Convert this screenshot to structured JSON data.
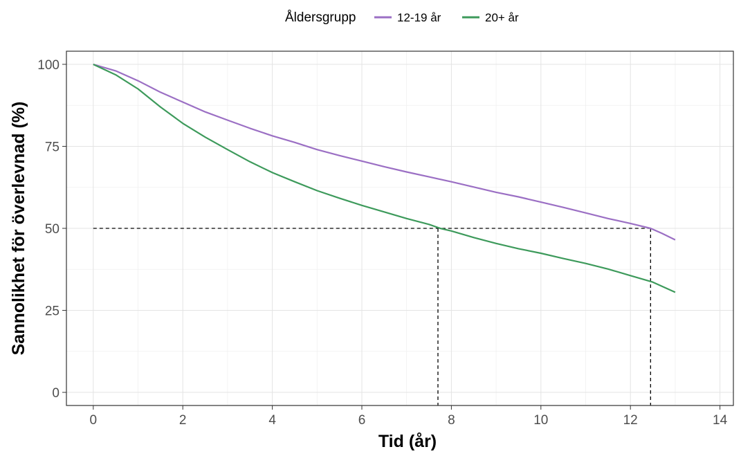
{
  "chart_data": {
    "type": "line",
    "xlabel": "Tid (år)",
    "ylabel": "Sannolikhet för överlevnad (%)",
    "xlim": [
      -0.6,
      14.3
    ],
    "ylim": [
      -4,
      104
    ],
    "x_ticks": [
      0,
      2,
      4,
      6,
      8,
      10,
      12,
      14
    ],
    "y_ticks": [
      0,
      25,
      50,
      75,
      100
    ],
    "grid": true,
    "legend": {
      "title": "Åldersgrupp",
      "position": "top"
    },
    "series": [
      {
        "name": "12-19 år",
        "color": "#9b6fc4",
        "x": [
          0,
          0.5,
          1,
          1.5,
          2,
          2.5,
          3,
          3.5,
          4,
          4.5,
          5,
          5.5,
          6,
          6.5,
          7,
          7.5,
          8,
          8.5,
          9,
          9.5,
          10,
          10.5,
          11,
          11.5,
          12,
          12.45,
          12.7,
          13
        ],
        "y": [
          100,
          98,
          95,
          91.5,
          88.5,
          85.5,
          83,
          80.5,
          78.2,
          76.2,
          74,
          72.2,
          70.5,
          68.8,
          67.2,
          65.7,
          64.2,
          62.6,
          61,
          59.6,
          58,
          56.4,
          54.7,
          53,
          51.5,
          50,
          48.5,
          46.5
        ]
      },
      {
        "name": "20+ år",
        "color": "#3d9a5b",
        "x": [
          0,
          0.5,
          1,
          1.5,
          2,
          2.5,
          3,
          3.5,
          4,
          4.5,
          5,
          5.5,
          6,
          6.5,
          7,
          7.5,
          7.75,
          8,
          8.5,
          9,
          9.5,
          10,
          10.5,
          11,
          11.5,
          12,
          12.5,
          13
        ],
        "y": [
          100,
          96.8,
          92.5,
          87,
          82,
          77.8,
          74,
          70.3,
          67,
          64.2,
          61.5,
          59.2,
          57,
          55,
          53,
          51.2,
          50,
          49.2,
          47.2,
          45.4,
          43.8,
          42.4,
          40.8,
          39.3,
          37.6,
          35.6,
          33.6,
          30.5
        ]
      }
    ],
    "reference_lines": {
      "median_y": 50,
      "median_x": [
        7.7,
        12.45
      ]
    }
  }
}
